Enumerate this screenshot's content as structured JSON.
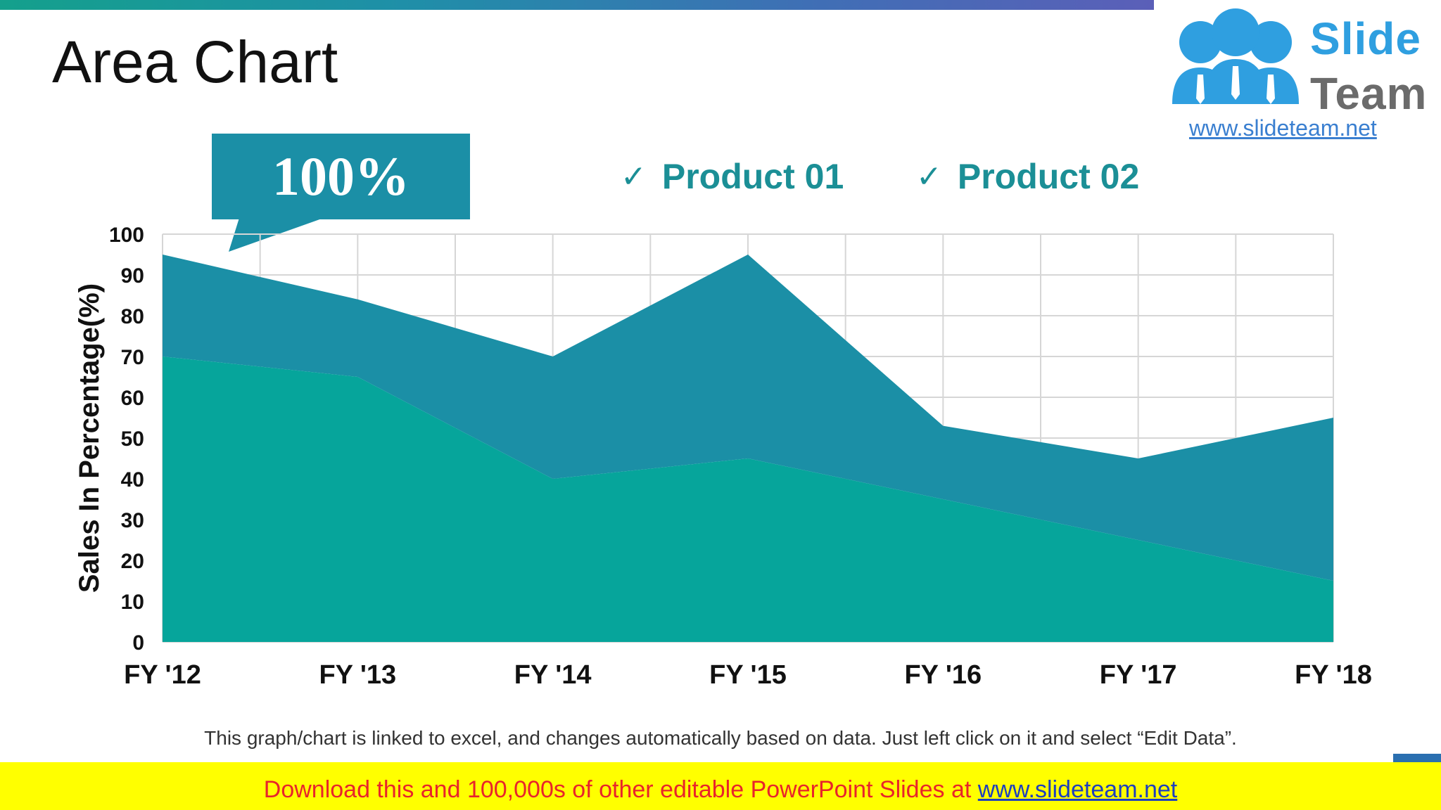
{
  "slide": {
    "title": "Area Chart",
    "callout": "100%",
    "footnote": "This graph/chart is linked to excel, and changes automatically based on data. Just left click on it and select “Edit Data”.",
    "banner_text": "Download this and 100,000s of other editable PowerPoint Slides at ",
    "banner_link": "www.slideteam.net"
  },
  "logo": {
    "word1": "Slide",
    "word2": "Team",
    "url": "www.slideteam.net"
  },
  "legend": [
    {
      "check": "✓",
      "label": "Product 01"
    },
    {
      "check": "✓",
      "label": "Product 02"
    }
  ],
  "colors": {
    "product01": "#06a59b",
    "product02": "#1b8fa6",
    "legend_text": "#1b8f96",
    "banner_bg": "#ffff00",
    "banner_text": "#e8242b"
  },
  "chart_data": {
    "type": "area",
    "stacked": true,
    "categories": [
      "FY '12",
      "FY '13",
      "FY '14",
      "FY '15",
      "FY '16",
      "FY '17",
      "FY '18"
    ],
    "series": [
      {
        "name": "Product 01",
        "values": [
          70,
          65,
          40,
          45,
          35,
          25,
          15
        ]
      },
      {
        "name": "Product 02",
        "values": [
          25,
          19,
          30,
          50,
          18,
          20,
          40
        ]
      }
    ],
    "ylabel": "Sales In Percentage(%)",
    "ylim": [
      0,
      100
    ],
    "yticks": [
      0,
      10,
      20,
      30,
      40,
      50,
      60,
      70,
      80,
      90,
      100
    ],
    "grid": true,
    "legend_position": "top"
  }
}
